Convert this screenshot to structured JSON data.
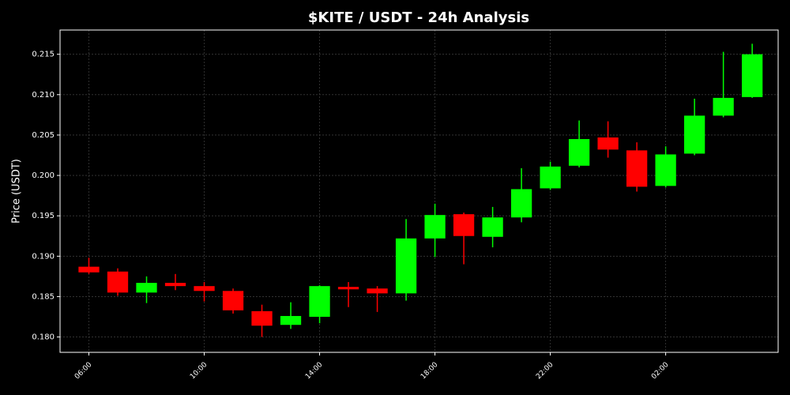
{
  "chart_data": {
    "type": "candlestick",
    "title": "$KITE / USDT - 24h Analysis",
    "y_label": "Price (USDT)",
    "categories": [
      "06:00",
      null,
      null,
      null,
      "10:00",
      null,
      null,
      null,
      "14:00",
      null,
      null,
      null,
      "18:00",
      null,
      null,
      null,
      "22:00",
      null,
      null,
      null,
      "02:00",
      null,
      null,
      null
    ],
    "open": [
      0.1887,
      0.1881,
      0.1855,
      0.1867,
      0.1863,
      0.1857,
      0.1832,
      0.1815,
      0.1825,
      0.1862,
      0.186,
      0.1854,
      0.1922,
      0.1952,
      0.1924,
      0.1948,
      0.1984,
      0.2012,
      0.2047,
      0.2031,
      0.1987,
      0.2027,
      0.2074,
      0.2097
    ],
    "high": [
      0.1898,
      0.1885,
      0.1875,
      0.1878,
      0.1868,
      0.186,
      0.184,
      0.1843,
      0.1864,
      0.1868,
      0.1863,
      0.1946,
      0.1965,
      0.1954,
      0.1961,
      0.2009,
      0.2017,
      0.2068,
      0.2067,
      0.2041,
      0.2036,
      0.2095,
      0.2153,
      0.2163
    ],
    "low": [
      0.1878,
      0.1851,
      0.1842,
      0.1858,
      0.1844,
      0.1829,
      0.18,
      0.181,
      0.1817,
      0.1837,
      0.1831,
      0.1845,
      0.1899,
      0.189,
      0.1911,
      0.1942,
      0.1982,
      0.201,
      0.2022,
      0.198,
      0.1985,
      0.2025,
      0.2072,
      0.2096
    ],
    "close": [
      0.188,
      0.1855,
      0.1867,
      0.1863,
      0.1857,
      0.1833,
      0.1814,
      0.1826,
      0.1863,
      0.1859,
      0.1854,
      0.1922,
      0.1951,
      0.1925,
      0.1948,
      0.1983,
      0.2011,
      0.2045,
      0.2032,
      0.1986,
      0.2026,
      0.2074,
      0.2096,
      0.215
    ],
    "up_color": "#00ff00",
    "down_color": "#ff0000",
    "ylim": [
      0.1781,
      0.218
    ],
    "yticks": [
      {
        "value": 0.18,
        "label": "0.180"
      },
      0.185,
      {
        "value": 0.19,
        "label": "0.190"
      },
      0.195,
      {
        "value": 0.2,
        "label": "0.200"
      },
      0.205,
      {
        "value": 0.21,
        "label": "0.210"
      },
      0.215
    ],
    "grid": true
  }
}
